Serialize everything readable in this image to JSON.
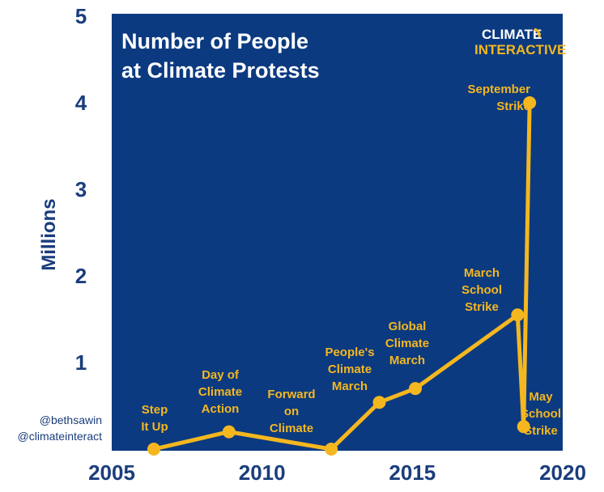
{
  "chart_data": {
    "type": "line",
    "title_lines": [
      "Number of People",
      "at Climate Protests"
    ],
    "ylabel": "Millions",
    "xlabel": "",
    "xlim": [
      2005,
      2020
    ],
    "ylim": [
      0,
      5
    ],
    "x_ticks": [
      "2005",
      "2010",
      "2015",
      "2020"
    ],
    "y_ticks": [
      "1",
      "2",
      "3",
      "4",
      "5"
    ],
    "grid": false,
    "series": [
      {
        "points": [
          {
            "x": 2006.4,
            "y": 0.0
          },
          {
            "x": 2008.9,
            "y": 0.2
          },
          {
            "x": 2012.3,
            "y": 0.0
          },
          {
            "x": 2013.9,
            "y": 0.54
          },
          {
            "x": 2015.1,
            "y": 0.7
          },
          {
            "x": 2018.5,
            "y": 1.55
          },
          {
            "x": 2018.7,
            "y": 0.26
          },
          {
            "x": 2018.9,
            "y": 4.0
          }
        ]
      }
    ],
    "annotations": [
      {
        "lines": [
          "Step",
          "It Up"
        ]
      },
      {
        "lines": [
          "Day of",
          "Climate",
          "Action"
        ]
      },
      {
        "lines": [
          "Forward",
          "on",
          "Climate"
        ]
      },
      {
        "lines": [
          "People's",
          "Climate",
          "March"
        ]
      },
      {
        "lines": [
          "Global",
          "Climate",
          "March"
        ]
      },
      {
        "lines": [
          "March",
          "School",
          "Strike"
        ]
      },
      {
        "lines": [
          "May",
          "School",
          "Strike"
        ]
      },
      {
        "lines": [
          "September",
          "Strike"
        ]
      }
    ],
    "handles": [
      "@bethsawin",
      "@climateinteract"
    ],
    "logo": [
      "CLIMATE",
      "INTERACTIVE"
    ],
    "colors": {
      "background": "#0b3a80",
      "line": "#f5b71f",
      "axis_text": "#1a3d7c",
      "title": "#ffffff"
    }
  }
}
